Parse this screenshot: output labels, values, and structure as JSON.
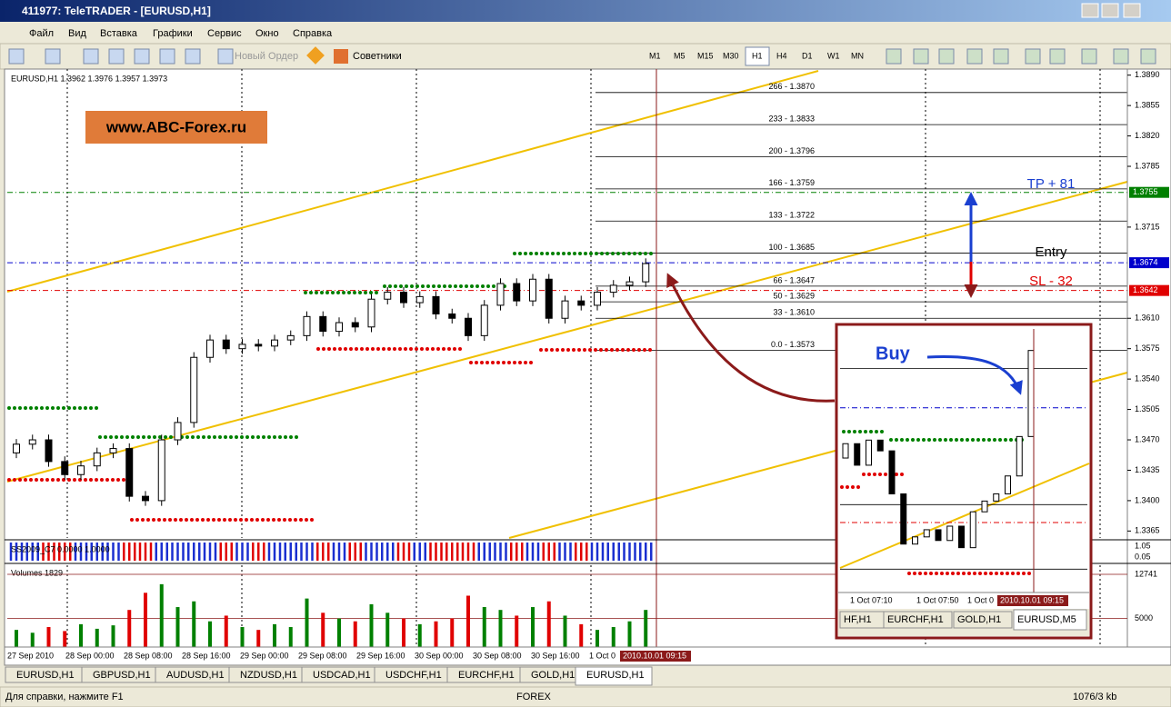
{
  "window": {
    "title": "411977: TeleTRADER - [EURUSD,H1]"
  },
  "menu": [
    "Файл",
    "Вид",
    "Вставка",
    "Графики",
    "Сервис",
    "Окно",
    "Справка"
  ],
  "toolbar": {
    "new_order": "Новый Ордер",
    "experts": "Советники",
    "timeframes": [
      "M1",
      "M5",
      "M15",
      "M30",
      "H1",
      "H4",
      "D1",
      "W1",
      "MN"
    ]
  },
  "chart_data": {
    "type": "candlestick",
    "symbol_info": "EURUSD,H1  1.3962 1.3976 1.3957 1.3973",
    "watermark": "www.ABC-Forex.ru",
    "ylim": [
      1.3357,
      1.3897
    ],
    "yticks": [
      {
        "value": 1.389,
        "label": "1.3890"
      },
      {
        "value": 1.3855,
        "label": "1.3855"
      },
      {
        "value": 1.382,
        "label": "1.3820"
      },
      {
        "value": 1.3785,
        "label": "1.3785"
      },
      {
        "value": 1.3715,
        "label": "1.3715"
      },
      {
        "value": 1.361,
        "label": "1.3610"
      },
      {
        "value": 1.3575,
        "label": "1.3575"
      },
      {
        "value": 1.354,
        "label": "1.3540"
      },
      {
        "value": 1.3505,
        "label": "1.3505"
      },
      {
        "value": 1.347,
        "label": "1.3470"
      },
      {
        "value": 1.3435,
        "label": "1.3435"
      },
      {
        "value": 1.34,
        "label": "1.3400"
      },
      {
        "value": 1.3365,
        "label": "1.3365"
      }
    ],
    "open": [
      1.3455,
      1.3465,
      1.347,
      1.3445,
      1.343,
      1.344,
      1.3455,
      1.346,
      1.3405,
      1.34,
      1.347,
      1.349,
      1.3565,
      1.3585,
      1.3575,
      1.358,
      1.3578,
      1.3585,
      1.359,
      1.3612,
      1.3595,
      1.3605,
      1.36,
      1.3632,
      1.364,
      1.3628,
      1.3635,
      1.3615,
      1.361,
      1.359,
      1.3625,
      1.365,
      1.363,
      1.3655,
      1.361,
      1.363,
      1.3625,
      1.364,
      1.3648,
      1.3652
    ],
    "high": [
      1.3471,
      1.3476,
      1.3476,
      1.3451,
      1.3446,
      1.3461,
      1.3466,
      1.3466,
      1.3411,
      1.3476,
      1.3496,
      1.3571,
      1.3591,
      1.3591,
      1.3586,
      1.3586,
      1.3591,
      1.3596,
      1.3618,
      1.3618,
      1.3611,
      1.3611,
      1.3638,
      1.3646,
      1.3646,
      1.3641,
      1.3641,
      1.3621,
      1.3616,
      1.3631,
      1.3656,
      1.3656,
      1.3661,
      1.3661,
      1.3636,
      1.3636,
      1.3646,
      1.3654,
      1.3658,
      1.3679
    ],
    "low": [
      1.3449,
      1.3459,
      1.3439,
      1.3424,
      1.3424,
      1.3434,
      1.3449,
      1.3399,
      1.3394,
      1.3394,
      1.3464,
      1.3484,
      1.3559,
      1.3569,
      1.3569,
      1.3572,
      1.3572,
      1.3579,
      1.3584,
      1.3589,
      1.3589,
      1.3594,
      1.3594,
      1.3626,
      1.3622,
      1.3622,
      1.3609,
      1.3604,
      1.3584,
      1.3584,
      1.3619,
      1.3624,
      1.3624,
      1.3604,
      1.3604,
      1.3619,
      1.3619,
      1.3634,
      1.3642,
      1.3646
    ],
    "close": [
      1.3465,
      1.347,
      1.3445,
      1.343,
      1.344,
      1.3455,
      1.346,
      1.3405,
      1.34,
      1.347,
      1.349,
      1.3565,
      1.3585,
      1.3575,
      1.358,
      1.3578,
      1.3585,
      1.359,
      1.3612,
      1.3595,
      1.3605,
      1.36,
      1.3632,
      1.364,
      1.3628,
      1.3635,
      1.3615,
      1.361,
      1.359,
      1.3625,
      1.365,
      1.363,
      1.3655,
      1.361,
      1.363,
      1.3625,
      1.364,
      1.3648,
      1.3652,
      1.3673
    ],
    "fib_levels": [
      {
        "value": 1.387,
        "label": "266 - 1.3870"
      },
      {
        "value": 1.3833,
        "label": "233 - 1.3833"
      },
      {
        "value": 1.3796,
        "label": "200 - 1.3796"
      },
      {
        "value": 1.3759,
        "label": "166 - 1.3759"
      },
      {
        "value": 1.3722,
        "label": "133 - 1.3722"
      },
      {
        "value": 1.3685,
        "label": "100 - 1.3685"
      },
      {
        "value": 1.3647,
        "label": "66 - 1.3647"
      },
      {
        "value": 1.3629,
        "label": "50 - 1.3629"
      },
      {
        "value": 1.361,
        "label": "33 - 1.3610"
      },
      {
        "value": 1.3573,
        "label": "0.0 - 1.3573"
      }
    ],
    "levels": [
      {
        "value": 1.3755,
        "label": "1.3755",
        "color": "#008000"
      },
      {
        "value": 1.3674,
        "label": "1.3674",
        "color": "#0000cc"
      },
      {
        "value": 1.3642,
        "label": "1.3642",
        "color": "#e00000"
      }
    ],
    "annotations": {
      "tp": "TP + 81",
      "entry": "Entry",
      "sl": "SL - 32",
      "buy": "Buy"
    },
    "xtick_labels": [
      "27 Sep 2010",
      "28 Sep 00:00",
      "28 Sep 08:00",
      "28 Sep 16:00",
      "29 Sep 00:00",
      "29 Sep 08:00",
      "29 Sep 16:00",
      "30 Sep 00:00",
      "30 Sep 08:00",
      "30 Sep 16:00",
      "1 Oct 0"
    ],
    "current_time": "2010.10.01 09:15",
    "indicator": {
      "label": "SS2009_C7 0.0000 1.0000",
      "scale_labels": [
        "1.05",
        "0.05"
      ]
    },
    "volumes": {
      "label": "Volumes 1829",
      "ylim": [
        0,
        12741
      ],
      "yticks": [
        5000,
        12741
      ],
      "values": [
        3000,
        2500,
        3500,
        2800,
        4000,
        3200,
        3800,
        6500,
        9500,
        11000,
        7000,
        8000,
        4500,
        5500,
        3500,
        3000,
        4000,
        3500,
        8500,
        6000,
        5000,
        4500,
        7500,
        6000,
        5000,
        4000,
        4500,
        5000,
        9000,
        7000,
        6500,
        5500,
        7000,
        8000,
        5500,
        4000,
        3000,
        3500,
        4500,
        6500
      ]
    },
    "inset": {
      "ylim": [
        1.3623,
        1.3696
      ],
      "open": [
        1.366,
        1.3664,
        1.3658,
        1.3665,
        1.3662,
        1.365,
        1.3636,
        1.3638,
        1.364,
        1.3637,
        1.3641,
        1.3635,
        1.3645,
        1.3648,
        1.365,
        1.3655,
        1.3666
      ],
      "close": [
        1.3664,
        1.3658,
        1.3665,
        1.3662,
        1.365,
        1.3636,
        1.3638,
        1.364,
        1.3637,
        1.3641,
        1.3635,
        1.3645,
        1.3648,
        1.365,
        1.3655,
        1.3666,
        1.369
      ],
      "xtick_labels": [
        "1 Oct 07:10",
        "1 Oct 07:50",
        "1 Oct 0"
      ],
      "tabs": [
        "HF,H1",
        "EURCHF,H1",
        "GOLD,H1",
        "EURUSD,M5"
      ]
    }
  },
  "tabs": [
    "EURUSD,H1",
    "GBPUSD,H1",
    "AUDUSD,H1",
    "NZDUSD,H1",
    "USDCAD,H1",
    "USDCHF,H1",
    "EURCHF,H1",
    "GOLD,H1",
    "EURUSD,H1"
  ],
  "status": {
    "help": "Для справки, нажмите F1",
    "profile": "FOREX",
    "traffic": "1076/3 kb"
  }
}
